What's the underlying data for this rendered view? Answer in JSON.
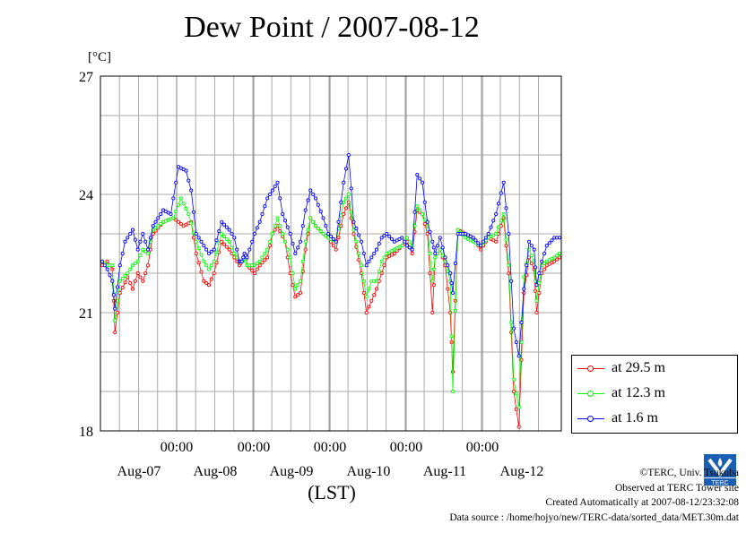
{
  "chart_data": {
    "type": "line",
    "title": "Dew Point / 2007-08-12",
    "ylabel": "[°C]",
    "xlabel": "(LST)",
    "ylim": [
      18,
      27
    ],
    "yticks": [
      "18",
      "21",
      "24",
      "27"
    ],
    "xtick_time_label": "00:00",
    "xticks": [
      "00:00",
      "00:00",
      "00:00",
      "00:00",
      "00:00"
    ],
    "xdates": [
      "Aug-07",
      "Aug-08",
      "Aug-09",
      "Aug-10",
      "Aug-11",
      "Aug-12"
    ],
    "grid": true,
    "legend_position": "bottom-right, outside plot",
    "series": [
      {
        "name": "at 29.5 m",
        "color": "#ff0000",
        "points": [
          [
            0,
            22.2
          ],
          [
            0.1,
            22.3
          ],
          [
            0.2,
            22.1
          ],
          [
            0.25,
            20.5
          ],
          [
            0.35,
            21.5
          ],
          [
            0.5,
            21.9
          ],
          [
            0.6,
            21.6
          ],
          [
            0.7,
            22.0
          ],
          [
            0.8,
            21.8
          ],
          [
            0.9,
            22.2
          ],
          [
            1.0,
            23.0
          ],
          [
            1.2,
            23.3
          ],
          [
            1.4,
            23.4
          ],
          [
            1.6,
            23.2
          ],
          [
            1.75,
            23.3
          ],
          [
            1.85,
            22.5
          ],
          [
            2.0,
            21.8
          ],
          [
            2.1,
            21.7
          ],
          [
            2.2,
            22.0
          ],
          [
            2.35,
            22.8
          ],
          [
            2.5,
            22.6
          ],
          [
            2.6,
            22.4
          ],
          [
            2.7,
            22.2
          ],
          [
            2.75,
            22.3
          ],
          [
            2.8,
            22.5
          ],
          [
            2.85,
            22.2
          ],
          [
            3.0,
            22.0
          ],
          [
            3.1,
            22.2
          ],
          [
            3.25,
            22.4
          ],
          [
            3.35,
            23.0
          ],
          [
            3.45,
            23.2
          ],
          [
            3.6,
            22.8
          ],
          [
            3.7,
            22.0
          ],
          [
            3.8,
            21.4
          ],
          [
            3.9,
            21.5
          ],
          [
            4.0,
            22.6
          ],
          [
            4.1,
            23.4
          ],
          [
            4.2,
            23.2
          ],
          [
            4.35,
            23.0
          ],
          [
            4.45,
            22.9
          ],
          [
            4.6,
            22.6
          ],
          [
            4.75,
            23.5
          ],
          [
            4.85,
            23.8
          ],
          [
            4.95,
            23.0
          ],
          [
            5.1,
            22.0
          ],
          [
            5.2,
            21.0
          ],
          [
            5.3,
            21.3
          ],
          [
            5.4,
            21.6
          ],
          [
            5.5,
            22.0
          ],
          [
            5.6,
            22.4
          ],
          [
            5.75,
            22.5
          ],
          [
            5.9,
            22.7
          ],
          [
            6.0,
            22.8
          ],
          [
            6.1,
            22.5
          ],
          [
            6.2,
            23.6
          ],
          [
            6.3,
            23.5
          ],
          [
            6.4,
            23.0
          ],
          [
            6.5,
            21.0
          ],
          [
            6.55,
            22.4
          ],
          [
            6.65,
            22.6
          ],
          [
            6.75,
            22.2
          ],
          [
            6.85,
            21.0
          ],
          [
            6.9,
            19.5
          ],
          [
            7.0,
            23.1
          ],
          [
            7.15,
            23.0
          ],
          [
            7.3,
            22.9
          ],
          [
            7.45,
            22.6
          ],
          [
            7.6,
            22.9
          ],
          [
            7.75,
            22.8
          ],
          [
            7.9,
            23.4
          ],
          [
            8.0,
            22.0
          ],
          [
            8.1,
            19.0
          ],
          [
            8.2,
            18.1
          ],
          [
            8.3,
            21.5
          ],
          [
            8.4,
            22.4
          ],
          [
            8.5,
            22.1
          ],
          [
            8.55,
            21.0
          ],
          [
            8.65,
            22.0
          ],
          [
            8.75,
            22.2
          ],
          [
            8.9,
            22.3
          ],
          [
            9.0,
            22.4
          ]
        ]
      },
      {
        "name": "at 12.3 m",
        "color": "#00ff00",
        "points": [
          [
            0,
            22.3
          ],
          [
            0.1,
            22.2
          ],
          [
            0.2,
            22.2
          ],
          [
            0.25,
            20.8
          ],
          [
            0.35,
            21.8
          ],
          [
            0.5,
            22.0
          ],
          [
            0.6,
            22.2
          ],
          [
            0.7,
            22.3
          ],
          [
            0.8,
            22.6
          ],
          [
            0.9,
            22.5
          ],
          [
            1.0,
            23.1
          ],
          [
            1.2,
            23.3
          ],
          [
            1.4,
            23.4
          ],
          [
            1.55,
            23.9
          ],
          [
            1.7,
            23.5
          ],
          [
            1.85,
            22.8
          ],
          [
            2.0,
            22.3
          ],
          [
            2.1,
            22.1
          ],
          [
            2.2,
            22.3
          ],
          [
            2.35,
            23.0
          ],
          [
            2.5,
            22.8
          ],
          [
            2.6,
            22.5
          ],
          [
            2.7,
            22.3
          ],
          [
            2.75,
            22.3
          ],
          [
            2.8,
            22.4
          ],
          [
            2.85,
            22.2
          ],
          [
            3.0,
            22.2
          ],
          [
            3.1,
            22.3
          ],
          [
            3.25,
            22.6
          ],
          [
            3.35,
            23.0
          ],
          [
            3.45,
            23.4
          ],
          [
            3.55,
            23.0
          ],
          [
            3.7,
            22.4
          ],
          [
            3.8,
            21.6
          ],
          [
            3.9,
            21.8
          ],
          [
            4.0,
            22.8
          ],
          [
            4.1,
            23.4
          ],
          [
            4.2,
            23.2
          ],
          [
            4.35,
            23.0
          ],
          [
            4.45,
            22.9
          ],
          [
            4.6,
            22.8
          ],
          [
            4.75,
            23.8
          ],
          [
            4.85,
            24.0
          ],
          [
            4.95,
            23.1
          ],
          [
            5.1,
            22.2
          ],
          [
            5.2,
            21.4
          ],
          [
            5.3,
            21.8
          ],
          [
            5.4,
            21.8
          ],
          [
            5.5,
            22.3
          ],
          [
            5.6,
            22.5
          ],
          [
            5.75,
            22.6
          ],
          [
            5.9,
            22.7
          ],
          [
            6.0,
            22.9
          ],
          [
            6.1,
            22.7
          ],
          [
            6.2,
            23.7
          ],
          [
            6.3,
            23.5
          ],
          [
            6.4,
            23.2
          ],
          [
            6.5,
            21.8
          ],
          [
            6.55,
            22.4
          ],
          [
            6.65,
            22.6
          ],
          [
            6.75,
            22.3
          ],
          [
            6.85,
            21.8
          ],
          [
            6.9,
            19.0
          ],
          [
            7.0,
            23.1
          ],
          [
            7.15,
            22.9
          ],
          [
            7.3,
            22.8
          ],
          [
            7.45,
            22.7
          ],
          [
            7.6,
            22.9
          ],
          [
            7.75,
            23.0
          ],
          [
            7.9,
            23.5
          ],
          [
            8.0,
            22.2
          ],
          [
            8.1,
            19.3
          ],
          [
            8.2,
            18.6
          ],
          [
            8.3,
            21.9
          ],
          [
            8.4,
            22.6
          ],
          [
            8.5,
            22.3
          ],
          [
            8.55,
            21.3
          ],
          [
            8.65,
            22.2
          ],
          [
            8.75,
            22.3
          ],
          [
            8.9,
            22.4
          ],
          [
            9.0,
            22.5
          ]
        ]
      },
      {
        "name": "at 1.6 m",
        "color": "#0000ff",
        "points": [
          [
            0,
            22.3
          ],
          [
            0.1,
            22.1
          ],
          [
            0.2,
            21.8
          ],
          [
            0.25,
            21.1
          ],
          [
            0.35,
            22.2
          ],
          [
            0.45,
            22.8
          ],
          [
            0.6,
            23.1
          ],
          [
            0.7,
            22.6
          ],
          [
            0.8,
            23.0
          ],
          [
            0.9,
            22.6
          ],
          [
            1.0,
            23.2
          ],
          [
            1.2,
            23.6
          ],
          [
            1.35,
            23.5
          ],
          [
            1.5,
            24.7
          ],
          [
            1.65,
            24.6
          ],
          [
            1.75,
            24.1
          ],
          [
            1.85,
            23.0
          ],
          [
            2.0,
            22.7
          ],
          [
            2.1,
            22.5
          ],
          [
            2.2,
            22.6
          ],
          [
            2.35,
            23.3
          ],
          [
            2.5,
            23.1
          ],
          [
            2.6,
            22.9
          ],
          [
            2.7,
            22.3
          ],
          [
            2.75,
            22.3
          ],
          [
            2.8,
            22.5
          ],
          [
            2.85,
            22.4
          ],
          [
            3.0,
            23.0
          ],
          [
            3.1,
            23.3
          ],
          [
            3.25,
            23.9
          ],
          [
            3.35,
            24.1
          ],
          [
            3.45,
            24.3
          ],
          [
            3.55,
            23.5
          ],
          [
            3.7,
            23.0
          ],
          [
            3.8,
            22.5
          ],
          [
            3.9,
            22.8
          ],
          [
            4.0,
            23.6
          ],
          [
            4.1,
            24.1
          ],
          [
            4.2,
            23.9
          ],
          [
            4.35,
            23.4
          ],
          [
            4.45,
            23.0
          ],
          [
            4.6,
            22.8
          ],
          [
            4.75,
            24.3
          ],
          [
            4.85,
            25.0
          ],
          [
            4.95,
            23.3
          ],
          [
            5.1,
            22.8
          ],
          [
            5.2,
            22.2
          ],
          [
            5.3,
            22.4
          ],
          [
            5.4,
            22.6
          ],
          [
            5.5,
            22.9
          ],
          [
            5.6,
            23.0
          ],
          [
            5.75,
            22.8
          ],
          [
            5.9,
            22.9
          ],
          [
            6.0,
            22.7
          ],
          [
            6.1,
            22.6
          ],
          [
            6.2,
            24.5
          ],
          [
            6.3,
            24.3
          ],
          [
            6.4,
            23.3
          ],
          [
            6.5,
            22.8
          ],
          [
            6.55,
            22.5
          ],
          [
            6.65,
            22.9
          ],
          [
            6.75,
            22.4
          ],
          [
            6.85,
            22.0
          ],
          [
            6.9,
            21.5
          ],
          [
            7.0,
            23.0
          ],
          [
            7.15,
            23.0
          ],
          [
            7.3,
            22.9
          ],
          [
            7.45,
            22.7
          ],
          [
            7.6,
            23.0
          ],
          [
            7.75,
            23.5
          ],
          [
            7.9,
            24.3
          ],
          [
            8.0,
            23.0
          ],
          [
            8.1,
            20.6
          ],
          [
            8.2,
            19.9
          ],
          [
            8.3,
            21.6
          ],
          [
            8.4,
            22.8
          ],
          [
            8.5,
            22.6
          ],
          [
            8.55,
            21.7
          ],
          [
            8.65,
            22.3
          ],
          [
            8.75,
            22.7
          ],
          [
            8.9,
            22.9
          ],
          [
            9.0,
            22.9
          ]
        ]
      }
    ]
  },
  "legend": [
    "at 29.5 m",
    "at 12.3 m",
    "at 1.6 m"
  ],
  "credits": {
    "copyright": "©TERC, Univ. Tsukuba",
    "observed": "Observed at TERC Tower site",
    "created": "Created Automatically at 2007-08-12/23:32:08",
    "source": "Data source : /home/hojyo/new/TERC-data/sorted_data/MET.30m.dat"
  },
  "logo_text": "TERC"
}
